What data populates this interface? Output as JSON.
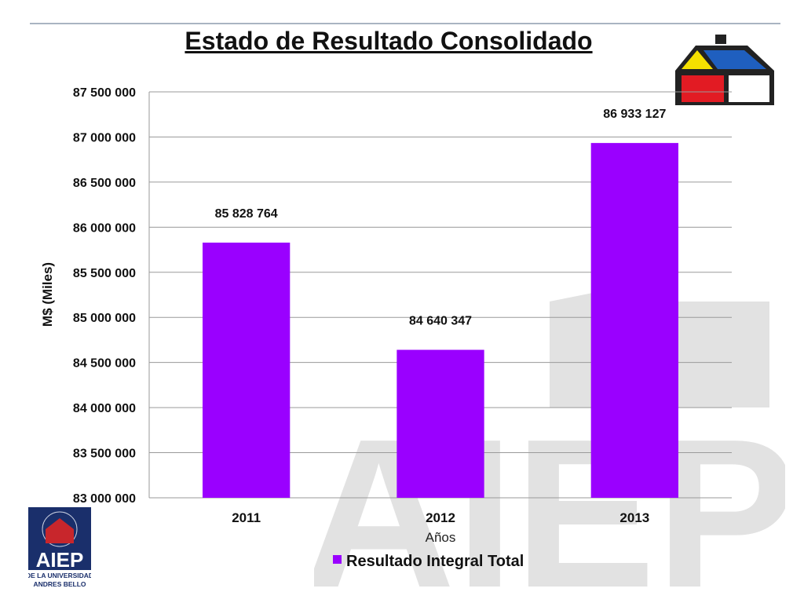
{
  "slide": {
    "title": "Estado de Resultado Consolidado"
  },
  "logos": {
    "aiep_text": "AIEP",
    "aiep_subtext_1": "DE LA UNIVERSIDAD",
    "aiep_subtext_2": "ANDRES BELLO",
    "watermark_text": "AIEP"
  },
  "colors": {
    "bar": "#9a00ff",
    "grid": "#9a9a9a",
    "house_yellow": "#f5e000",
    "house_blue": "#1f5fbf",
    "house_red": "#e21b23",
    "aiep_blue": "#1a2f6b",
    "watermark": "#e2e2e2"
  },
  "chart_data": {
    "type": "bar",
    "categories": [
      "2011",
      "2012",
      "2013"
    ],
    "series": [
      {
        "name": "Resultado Integral Total",
        "values": [
          85828764,
          84640347,
          86933127
        ]
      }
    ],
    "data_labels": [
      "85 828 764",
      "84 640 347",
      "86 933 127"
    ],
    "xlabel": "Años",
    "ylabel": "M$ (Miles)",
    "ylim": [
      83000000,
      87500000
    ],
    "yticks": [
      83000000,
      83500000,
      84000000,
      84500000,
      85000000,
      85500000,
      86000000,
      86500000,
      87000000,
      87500000
    ],
    "ytick_labels": [
      "83 000 000",
      "83 500 000",
      "84 000 000",
      "84 500 000",
      "85 000 000",
      "85 500 000",
      "86 000 000",
      "86 500 000",
      "87 000 000",
      "87 500 000"
    ],
    "grid": true,
    "legend": "bottom"
  }
}
